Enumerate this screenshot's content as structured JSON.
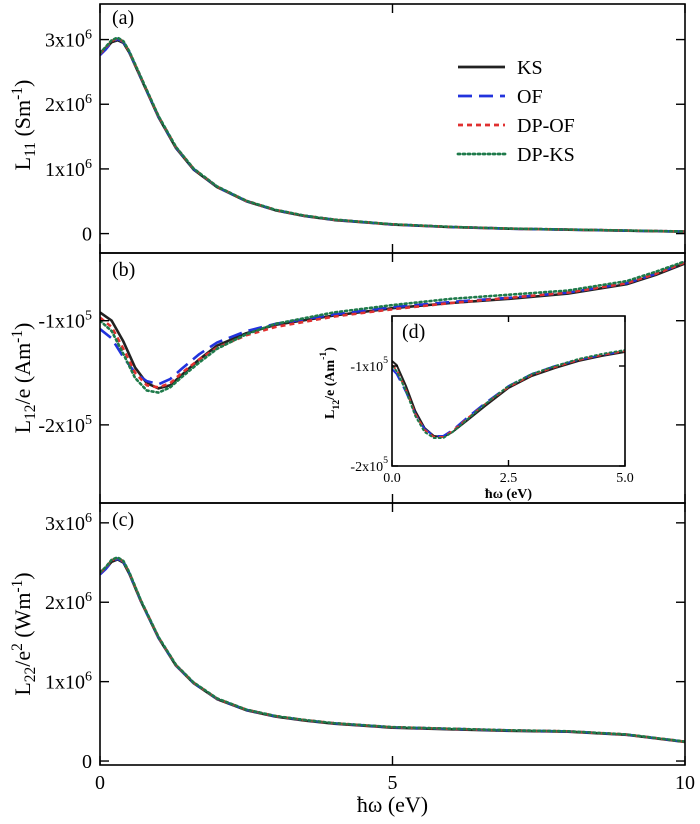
{
  "chart_data": [
    {
      "panel": "(a)",
      "type": "line",
      "xlabel": "",
      "ylabel": "L<sub>11</sub> (Sm<sup>-1</sup>)",
      "xlim": [
        0,
        10
      ],
      "ylim": [
        -300000,
        3550000
      ],
      "yticks": [
        0,
        1000000,
        2000000,
        3000000
      ],
      "yticklabels": [
        "0",
        "1x10<sup>6</sup>",
        "2x10<sup>6</sup>",
        "3x10<sup>6</sup>"
      ],
      "legend_position": "top-right",
      "series": [
        {
          "name": "KS",
          "color": "#222222",
          "dash": "solid",
          "x": [
            0,
            0.1,
            0.2,
            0.3,
            0.4,
            0.5,
            0.7,
            1.0,
            1.3,
            1.6,
            2.0,
            2.5,
            3.0,
            3.5,
            4.0,
            5.0,
            6.0,
            7.0,
            8.0,
            9.0,
            10.0
          ],
          "y": [
            2800000,
            2870000,
            2960000,
            2990000,
            2950000,
            2800000,
            2400000,
            1800000,
            1320000,
            990000,
            720000,
            500000,
            360000,
            270000,
            210000,
            140000,
            100000,
            75000,
            60000,
            45000,
            30000
          ]
        },
        {
          "name": "OF",
          "color": "#2233dd",
          "dash": "long",
          "x": [
            0,
            0.1,
            0.2,
            0.3,
            0.4,
            0.5,
            0.7,
            1.0,
            1.3,
            1.6,
            2.0,
            2.5,
            3.0,
            3.5,
            4.0,
            5.0,
            6.0,
            7.0,
            8.0,
            9.0,
            10.0
          ],
          "y": [
            2760000,
            2850000,
            2960000,
            3010000,
            2960000,
            2810000,
            2410000,
            1810000,
            1330000,
            1000000,
            725000,
            505000,
            365000,
            275000,
            215000,
            142000,
            102000,
            76000,
            61000,
            46000,
            31000
          ]
        },
        {
          "name": "DP-OF",
          "color": "#e03030",
          "dash": "short",
          "x": [
            0,
            0.1,
            0.2,
            0.3,
            0.4,
            0.5,
            0.7,
            1.0,
            1.3,
            1.6,
            2.0,
            2.5,
            3.0,
            3.5,
            4.0,
            5.0,
            6.0,
            7.0,
            8.0,
            9.0,
            10.0
          ],
          "y": [
            2780000,
            2880000,
            2980000,
            3020000,
            2970000,
            2815000,
            2415000,
            1815000,
            1335000,
            1003000,
            728000,
            507000,
            366000,
            276000,
            216000,
            143000,
            103000,
            77000,
            62000,
            47000,
            32000
          ]
        },
        {
          "name": "DP-KS",
          "color": "#1e7a4a",
          "dash": "dot",
          "x": [
            0,
            0.1,
            0.2,
            0.3,
            0.4,
            0.5,
            0.7,
            1.0,
            1.3,
            1.6,
            2.0,
            2.5,
            3.0,
            3.5,
            4.0,
            5.0,
            6.0,
            7.0,
            8.0,
            9.0,
            10.0
          ],
          "y": [
            2790000,
            2890000,
            2990000,
            3030000,
            2975000,
            2820000,
            2420000,
            1818000,
            1338000,
            1005000,
            730000,
            508000,
            367000,
            277000,
            217000,
            144000,
            104000,
            78000,
            63000,
            48000,
            33000
          ]
        }
      ]
    },
    {
      "panel": "(b)",
      "type": "line",
      "xlabel": "",
      "ylabel": "L<sub>12</sub>/e (Am<sup>-1</sup>)",
      "xlim": [
        0,
        10
      ],
      "ylim": [
        -275000,
        -35000
      ],
      "yticks": [
        -100000,
        -200000
      ],
      "yticklabels": [
        "-1x10<sup>5</sup>",
        "-2x10<sup>5</sup>"
      ],
      "series": [
        {
          "name": "KS",
          "color": "#222222",
          "dash": "solid",
          "x": [
            0,
            0.2,
            0.4,
            0.6,
            0.8,
            1.0,
            1.2,
            1.4,
            1.7,
            2.0,
            2.5,
            3.0,
            4.0,
            5.0,
            6.0,
            7.0,
            8.0,
            9.0,
            9.5,
            10.0
          ],
          "y": [
            -92000,
            -100000,
            -120000,
            -145000,
            -160000,
            -165000,
            -162000,
            -152000,
            -137000,
            -124000,
            -112000,
            -104000,
            -95000,
            -88000,
            -83000,
            -79000,
            -74000,
            -65000,
            -56000,
            -45000
          ]
        },
        {
          "name": "OF",
          "color": "#2233dd",
          "dash": "long",
          "x": [
            0,
            0.2,
            0.4,
            0.6,
            0.8,
            1.0,
            1.2,
            1.4,
            1.7,
            2.0,
            2.5,
            3.0,
            4.0,
            5.0,
            6.0,
            7.0,
            8.0,
            9.0,
            9.5,
            10.0
          ],
          "y": [
            -108000,
            -117000,
            -135000,
            -150000,
            -158000,
            -161000,
            -156000,
            -146000,
            -132000,
            -121000,
            -110000,
            -103000,
            -94000,
            -87000,
            -82000,
            -78000,
            -73000,
            -64000,
            -55000,
            -44000
          ]
        },
        {
          "name": "DP-OF",
          "color": "#e03030",
          "dash": "short",
          "x": [
            0,
            0.2,
            0.4,
            0.6,
            0.8,
            1.0,
            1.2,
            1.4,
            1.7,
            2.0,
            2.5,
            3.0,
            4.0,
            5.0,
            6.0,
            7.0,
            8.0,
            9.0,
            9.5,
            10.0
          ],
          "y": [
            -97000,
            -106000,
            -127000,
            -150000,
            -162000,
            -164000,
            -160000,
            -150000,
            -137000,
            -126000,
            -114000,
            -106000,
            -96000,
            -89000,
            -83000,
            -78000,
            -73000,
            -64000,
            -55000,
            -44000
          ]
        },
        {
          "name": "DP-KS",
          "color": "#1e7a4a",
          "dash": "dot",
          "x": [
            0,
            0.2,
            0.4,
            0.6,
            0.8,
            1.0,
            1.2,
            1.4,
            1.7,
            2.0,
            2.5,
            3.0,
            4.0,
            5.0,
            6.0,
            7.0,
            8.0,
            9.0,
            9.5,
            10.0
          ],
          "y": [
            -100000,
            -110000,
            -132000,
            -155000,
            -167000,
            -169000,
            -164000,
            -154000,
            -140000,
            -127000,
            -113000,
            -103000,
            -92000,
            -85000,
            -79000,
            -75000,
            -71000,
            -62000,
            -53000,
            -43000
          ]
        }
      ]
    },
    {
      "panel": "(d)",
      "type": "line",
      "inset_of": "(b)",
      "xlabel": "ħω (eV)",
      "ylabel": "L<sub>12</sub>/e (Am<sup>-1</sup>)",
      "xlim": [
        0,
        5
      ],
      "ylim": [
        -200000,
        -50000
      ],
      "xticks": [
        0,
        2.5,
        5
      ],
      "xticklabels": [
        "0.0",
        "2.5",
        "5.0"
      ],
      "yticks": [
        -100000,
        -200000
      ],
      "yticklabels": [
        "-1x10<sup>5</sup>",
        "-2x10<sup>5</sup>"
      ],
      "series": [
        {
          "name": "KS",
          "color": "#222222",
          "dash": "solid",
          "x": [
            0,
            0.1,
            0.3,
            0.5,
            0.7,
            0.9,
            1.1,
            1.3,
            1.6,
            2.0,
            2.5,
            3.0,
            3.5,
            4.0,
            4.5,
            5.0
          ],
          "y": [
            -95000,
            -99000,
            -120000,
            -145000,
            -162000,
            -170000,
            -171000,
            -166000,
            -155000,
            -140000,
            -122000,
            -110000,
            -102000,
            -95000,
            -90000,
            -86000
          ]
        },
        {
          "name": "OF",
          "color": "#2233dd",
          "dash": "long",
          "x": [
            0,
            0.1,
            0.3,
            0.5,
            0.7,
            0.9,
            1.1,
            1.3,
            1.6,
            2.0,
            2.5,
            3.0,
            3.5,
            4.0,
            4.5,
            5.0
          ],
          "y": [
            -103000,
            -108000,
            -126000,
            -148000,
            -163000,
            -170000,
            -170000,
            -164000,
            -152000,
            -137000,
            -120000,
            -108000,
            -100000,
            -94000,
            -89000,
            -85000
          ]
        },
        {
          "name": "DP-OF",
          "color": "#e03030",
          "dash": "short",
          "x": [
            0,
            0.1,
            0.3,
            0.5,
            0.7,
            0.9,
            1.1,
            1.3,
            1.6,
            2.0,
            2.5,
            3.0,
            3.5,
            4.0,
            4.5,
            5.0
          ],
          "y": [
            -99000,
            -104000,
            -124000,
            -148000,
            -164000,
            -171000,
            -171000,
            -165000,
            -153000,
            -138000,
            -121000,
            -109000,
            -101000,
            -94000,
            -89000,
            -85000
          ]
        },
        {
          "name": "DP-KS",
          "color": "#1e7a4a",
          "dash": "dot",
          "x": [
            0,
            0.1,
            0.3,
            0.5,
            0.7,
            0.9,
            1.1,
            1.3,
            1.6,
            2.0,
            2.5,
            3.0,
            3.5,
            4.0,
            4.5,
            5.0
          ],
          "y": [
            -100000,
            -105000,
            -125000,
            -150000,
            -166000,
            -172000,
            -172000,
            -166000,
            -154000,
            -138000,
            -120000,
            -108000,
            -100000,
            -93000,
            -88000,
            -84000
          ]
        }
      ]
    },
    {
      "panel": "(c)",
      "type": "line",
      "xlabel": "ħω (eV)",
      "ylabel": "L<sub>22</sub>/e<sup>2</sup> (Wm<sup>-1</sup>)",
      "xlim": [
        0,
        10
      ],
      "xticks": [
        0,
        5,
        10
      ],
      "xticklabels": [
        "0",
        "5",
        "10"
      ],
      "ylim": [
        -50000,
        3250000
      ],
      "yticks": [
        0,
        1000000,
        2000000,
        3000000
      ],
      "yticklabels": [
        "0",
        "1x10<sup>6</sup>",
        "2x10<sup>6</sup>",
        "3x10<sup>6</sup>"
      ],
      "series": [
        {
          "name": "KS",
          "color": "#222222",
          "dash": "solid",
          "x": [
            0,
            0.1,
            0.2,
            0.3,
            0.4,
            0.5,
            0.7,
            1.0,
            1.3,
            1.6,
            2.0,
            2.5,
            3.0,
            3.5,
            4.0,
            5.0,
            6.0,
            7.0,
            8.0,
            9.0,
            10.0
          ],
          "y": [
            2380000,
            2430000,
            2510000,
            2540000,
            2500000,
            2360000,
            2010000,
            1550000,
            1200000,
            980000,
            780000,
            640000,
            560000,
            510000,
            470000,
            420000,
            400000,
            380000,
            370000,
            330000,
            240000
          ]
        },
        {
          "name": "OF",
          "color": "#2233dd",
          "dash": "long",
          "x": [
            0,
            0.1,
            0.2,
            0.3,
            0.4,
            0.5,
            0.7,
            1.0,
            1.3,
            1.6,
            2.0,
            2.5,
            3.0,
            3.5,
            4.0,
            5.0,
            6.0,
            7.0,
            8.0,
            9.0,
            10.0
          ],
          "y": [
            2350000,
            2420000,
            2510000,
            2550000,
            2510000,
            2370000,
            2015000,
            1555000,
            1205000,
            985000,
            785000,
            645000,
            565000,
            515000,
            475000,
            425000,
            405000,
            385000,
            373000,
            333000,
            243000
          ]
        },
        {
          "name": "DP-OF",
          "color": "#e03030",
          "dash": "short",
          "x": [
            0,
            0.1,
            0.2,
            0.3,
            0.4,
            0.5,
            0.7,
            1.0,
            1.3,
            1.6,
            2.0,
            2.5,
            3.0,
            3.5,
            4.0,
            5.0,
            6.0,
            7.0,
            8.0,
            9.0,
            10.0
          ],
          "y": [
            2370000,
            2440000,
            2530000,
            2560000,
            2515000,
            2375000,
            2020000,
            1560000,
            1208000,
            988000,
            787000,
            647000,
            566000,
            516000,
            476000,
            426000,
            406000,
            386000,
            374000,
            334000,
            244000
          ]
        },
        {
          "name": "DP-KS",
          "color": "#1e7a4a",
          "dash": "dot",
          "x": [
            0,
            0.1,
            0.2,
            0.3,
            0.4,
            0.5,
            0.7,
            1.0,
            1.3,
            1.6,
            2.0,
            2.5,
            3.0,
            3.5,
            4.0,
            5.0,
            6.0,
            7.0,
            8.0,
            9.0,
            10.0
          ],
          "y": [
            2375000,
            2445000,
            2535000,
            2565000,
            2520000,
            2378000,
            2022000,
            1562000,
            1210000,
            990000,
            789000,
            648000,
            567000,
            517000,
            477000,
            427000,
            407000,
            387000,
            375000,
            335000,
            245000
          ]
        }
      ]
    }
  ],
  "legend": {
    "entries": [
      {
        "name": "KS",
        "color": "#222222",
        "dash": "solid"
      },
      {
        "name": "OF",
        "color": "#2233dd",
        "dash": "long"
      },
      {
        "name": "DP-OF",
        "color": "#e03030",
        "dash": "short"
      },
      {
        "name": "DP-KS",
        "color": "#1e7a4a",
        "dash": "dot"
      }
    ]
  }
}
